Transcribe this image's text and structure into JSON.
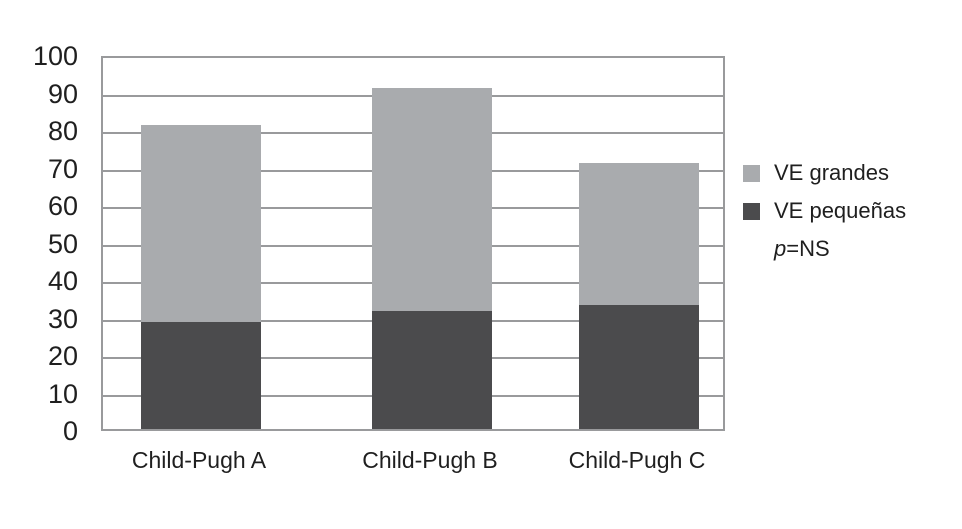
{
  "chart_data": {
    "type": "bar",
    "stacked": true,
    "categories": [
      "Child-Pugh A",
      "Child-Pugh B",
      "Child-Pugh C"
    ],
    "series": [
      {
        "name": "VE pequeñas",
        "color": "#4b4b4d",
        "values": [
          28.5,
          31.5,
          33
        ]
      },
      {
        "name": "VE grandes",
        "color": "#a9abae",
        "values": [
          52.5,
          59.5,
          38
        ]
      }
    ],
    "stack_totals": [
      81,
      91,
      71
    ],
    "title": "",
    "xlabel": "",
    "ylabel": "",
    "ylim": [
      0,
      100
    ],
    "yticks": [
      100,
      90,
      80,
      70,
      60,
      50,
      40,
      30,
      20,
      10,
      0
    ],
    "grid": true,
    "gridline_color": "#999a9c",
    "legend_position": "right"
  },
  "legend": {
    "items": [
      {
        "label": "VE grandes",
        "color": "#a9abae"
      },
      {
        "label": "VE pequeñas",
        "color": "#4b4b4d"
      }
    ],
    "note_italic": "p",
    "note_rest": "=NS"
  }
}
